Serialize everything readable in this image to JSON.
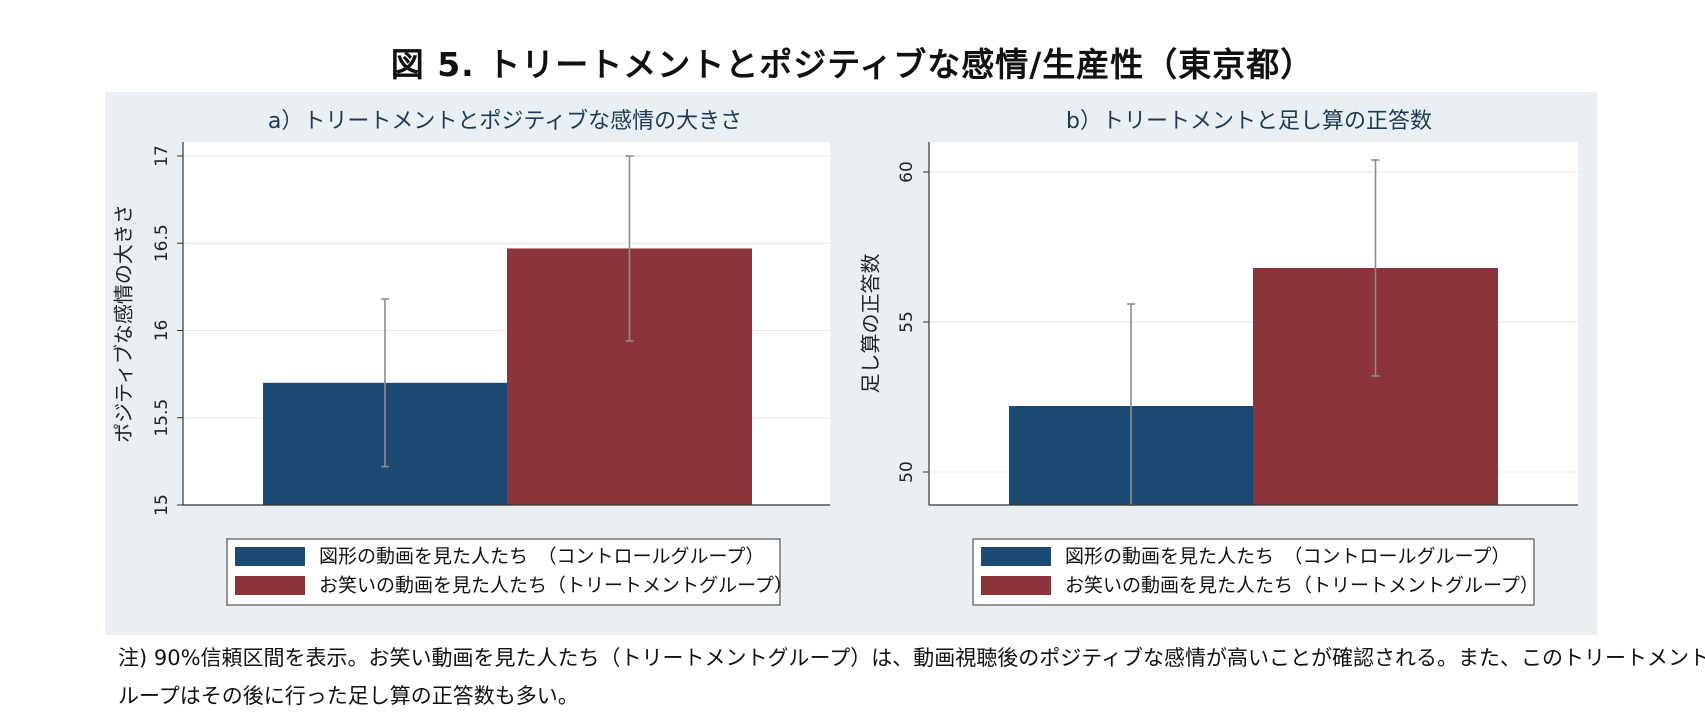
{
  "title": "図 5. トリートメントとポジティブな感情/生産性（東京都）",
  "note": [
    "注) 90%信頼区間を表示。お笑い動画を見た人たち（トリートメントグループ）は、動画視聴後のポジティブな感情が高いことが確認される。また、このトリートメントグ",
    "ループはその後に行った足し算の正答数も多い。"
  ],
  "colors": {
    "control": "#1b4a72",
    "treatment": "#8c343c",
    "panel_bg": "#e9eff3",
    "plot_bg": "#ffffff",
    "error_bar": "#8c8c8c"
  },
  "chart_data": [
    {
      "type": "bar",
      "title": "a）トリートメントとポジティブな感情の大きさ",
      "ylabel": "ポジティブな感情の大きさ",
      "xlabel": "",
      "ylim": [
        15,
        17.08
      ],
      "yticks": [
        "15",
        "15.5",
        "16",
        "16.5",
        "17"
      ],
      "grid": true,
      "legend_position": "bottom",
      "series": [
        {
          "name": "図形の動画を見た人たち　（コントロールグループ）",
          "value": 15.7,
          "ci_low": 15.22,
          "ci_high": 16.18
        },
        {
          "name": "お笑いの動画を見た人たち（トリートメントグループ）",
          "value": 16.47,
          "ci_low": 15.94,
          "ci_high": 17.0
        }
      ]
    },
    {
      "type": "bar",
      "title": "b）トリートメントと足し算の正答数",
      "ylabel": "足し算の正答数",
      "xlabel": "",
      "ylim": [
        48.9,
        61.0
      ],
      "yticks": [
        "50",
        "55",
        "60"
      ],
      "grid": true,
      "legend_position": "bottom",
      "series": [
        {
          "name": "図形の動画を見た人たち　（コントロールグループ）",
          "value": 52.2,
          "ci_low": 48.9,
          "ci_high": 55.6
        },
        {
          "name": "お笑いの動画を見た人たち（トリートメントグループ）",
          "value": 56.8,
          "ci_low": 53.2,
          "ci_high": 60.4
        }
      ]
    }
  ]
}
